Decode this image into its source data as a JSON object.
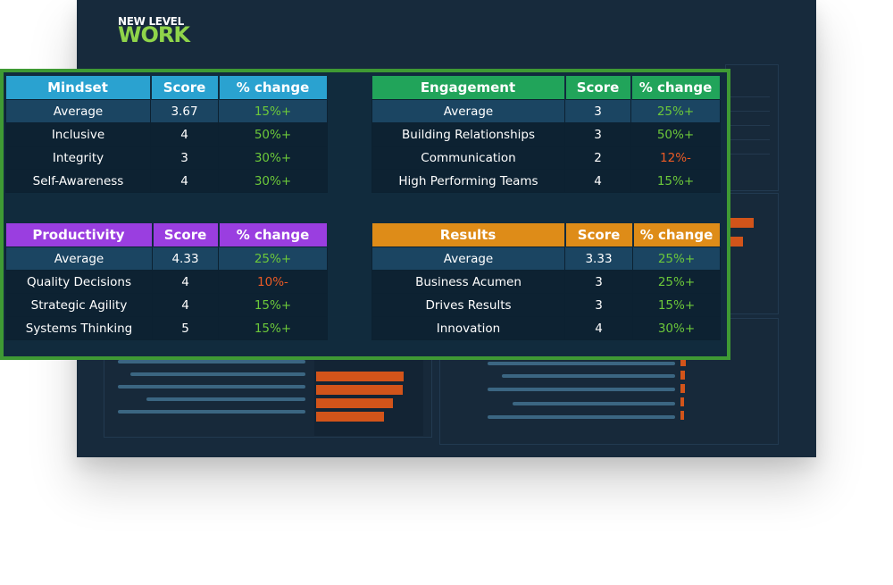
{
  "logo": {
    "top": "NEW LEVEL",
    "bottom": "WORK"
  },
  "colors": {
    "mindset": "#2aa2d0",
    "engagement": "#21a45a",
    "productivity": "#9a3ee0",
    "results": "#de8c18",
    "positive": "#6cc83a",
    "negative": "#ec5b25",
    "frame": "#3f9a34"
  },
  "tables": {
    "mindset": {
      "headers": [
        "Mindset",
        "Score",
        "% change"
      ],
      "rows": [
        {
          "label": "Average",
          "score": "3.67",
          "change": "15%+",
          "trend": "up"
        },
        {
          "label": "Inclusive",
          "score": "4",
          "change": "50%+",
          "trend": "up"
        },
        {
          "label": "Integrity",
          "score": "3",
          "change": "30%+",
          "trend": "up"
        },
        {
          "label": "Self-Awareness",
          "score": "4",
          "change": "30%+",
          "trend": "up"
        }
      ]
    },
    "engagement": {
      "headers": [
        "Engagement",
        "Score",
        "% change"
      ],
      "rows": [
        {
          "label": "Average",
          "score": "3",
          "change": "25%+",
          "trend": "up"
        },
        {
          "label": "Building Relationships",
          "score": "3",
          "change": "50%+",
          "trend": "up"
        },
        {
          "label": "Communication",
          "score": "2",
          "change": "12%-",
          "trend": "down"
        },
        {
          "label": "High Performing Teams",
          "score": "4",
          "change": "15%+",
          "trend": "up"
        }
      ]
    },
    "productivity": {
      "headers": [
        "Productivity",
        "Score",
        "% change"
      ],
      "rows": [
        {
          "label": "Average",
          "score": "4.33",
          "change": "25%+",
          "trend": "up"
        },
        {
          "label": "Quality Decisions",
          "score": "4",
          "change": "10%-",
          "trend": "down"
        },
        {
          "label": "Strategic Agility",
          "score": "4",
          "change": "15%+",
          "trend": "up"
        },
        {
          "label": "Systems Thinking",
          "score": "5",
          "change": "15%+",
          "trend": "up"
        }
      ]
    },
    "results": {
      "headers": [
        "Results",
        "Score",
        "% change"
      ],
      "rows": [
        {
          "label": "Average",
          "score": "3.33",
          "change": "25%+",
          "trend": "up"
        },
        {
          "label": "Business Acumen",
          "score": "3",
          "change": "25%+",
          "trend": "up"
        },
        {
          "label": "Drives Results",
          "score": "3",
          "change": "15%+",
          "trend": "up"
        },
        {
          "label": "Innovation",
          "score": "4",
          "change": "30%+",
          "trend": "up"
        }
      ]
    }
  }
}
